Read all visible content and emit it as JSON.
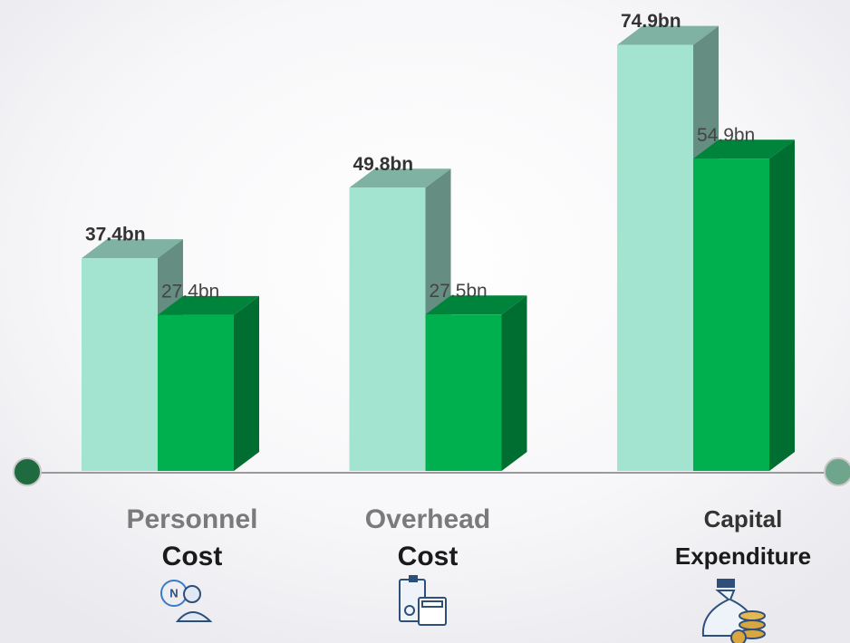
{
  "chart_data": {
    "type": "bar3d",
    "categories": [
      [
        "Personnel",
        "Cost"
      ],
      [
        "Overhead",
        "Cost"
      ],
      [
        "Capital",
        "Expenditure"
      ]
    ],
    "series": [
      {
        "color": "#a3e4d0",
        "values": [
          37.4,
          49.8,
          74.9
        ],
        "value_labels": [
          "37.4bn",
          "49.8bn",
          "74.9bn"
        ]
      },
      {
        "color": "#00b04f",
        "values": [
          27.4,
          27.5,
          54.9
        ],
        "value_labels": [
          "27.4bn",
          "27.5bn",
          "54.9bn"
        ]
      }
    ]
  }
}
